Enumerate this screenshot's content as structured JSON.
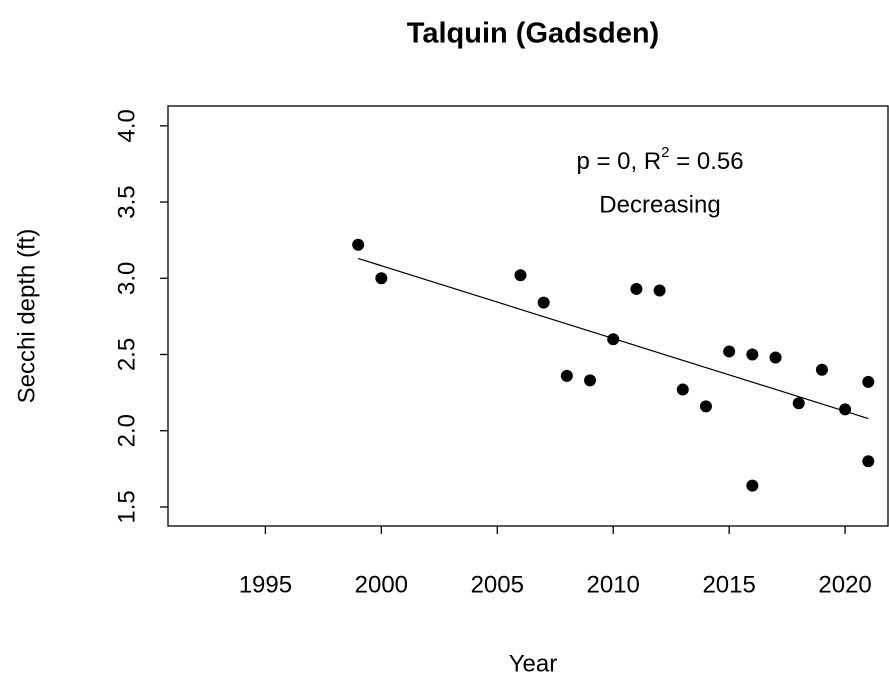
{
  "chart_data": {
    "type": "scatter",
    "title": "Talquin (Gadsden)",
    "x_label": "Year",
    "y_label": "Secchi depth (ft)",
    "stat_text": {
      "prefix": "p = 0, R",
      "sup": "2",
      "suffix": " = 0.56"
    },
    "trend_label": "Decreasing",
    "x": [
      1999,
      2000,
      2006,
      2007,
      2008,
      2009,
      2010,
      2011,
      2012,
      2013,
      2014,
      2015,
      2016,
      2016,
      2017,
      2018,
      2019,
      2020,
      2021,
      2021
    ],
    "values": [
      3.22,
      3.0,
      3.02,
      2.84,
      2.36,
      2.33,
      2.6,
      2.93,
      2.92,
      2.27,
      2.16,
      2.52,
      2.5,
      1.64,
      2.48,
      2.18,
      2.4,
      2.14,
      2.32,
      1.8
    ],
    "color": "#000000",
    "trend_line": {
      "x": [
        1999,
        2021
      ],
      "values": [
        3.13,
        2.08
      ],
      "color": "#000000"
    },
    "xlim": [
      1990.8,
      2021.85
    ],
    "ylim": [
      1.375,
      4.13
    ],
    "xticks": [
      1995,
      2000,
      2005,
      2010,
      2015,
      2020
    ],
    "yticks": [
      1.5,
      {
        "value": 2,
        "label": "2.0"
      },
      2.5,
      {
        "value": 3,
        "label": "3.0"
      },
      3.5,
      {
        "value": 4,
        "label": "4.0"
      }
    ],
    "grid": false
  }
}
